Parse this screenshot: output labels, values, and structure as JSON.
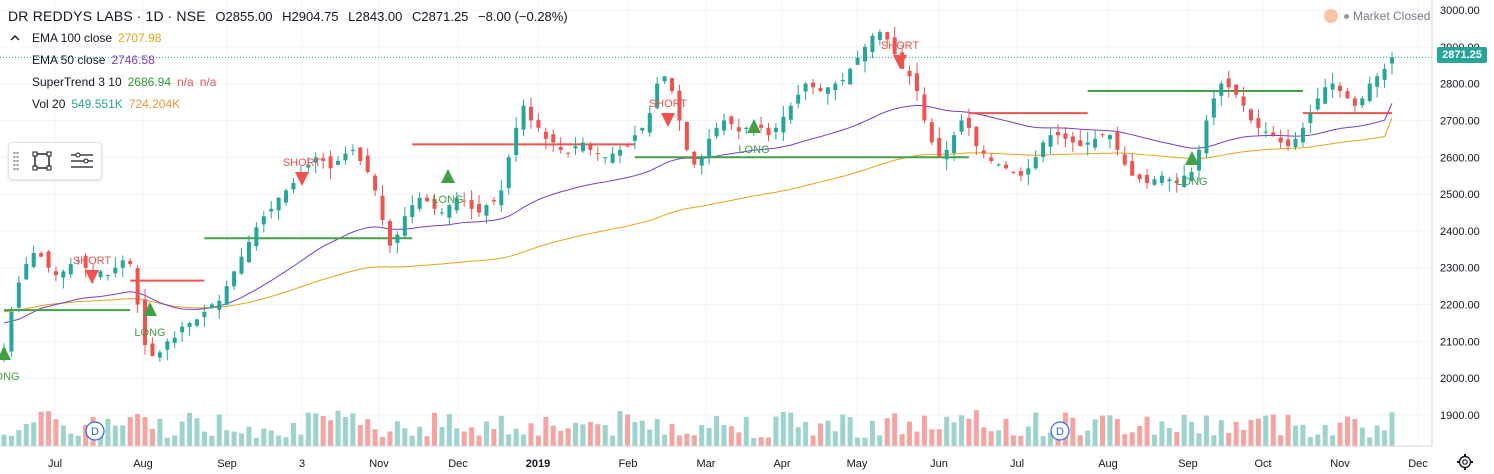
{
  "header": {
    "symbol": "DR REDDYS LABS",
    "interval": "1D",
    "exchange": "NSE",
    "open": "O2855.00",
    "high": "H2904.75",
    "low": "L2843.00",
    "close": "C2871.25",
    "change": "−8.00 (−0.28%)"
  },
  "indicators": [
    {
      "label": "EMA 100 close",
      "value": "2707.98",
      "color": "#e8a21b"
    },
    {
      "label": "EMA 50 close",
      "value": "2746.58",
      "color": "#7b3fc4"
    },
    {
      "label": "SuperTrend 3 10",
      "value": "2686.94",
      "value2": "n/a",
      "value3": "n/a",
      "color": "#2e9a2e",
      "color2": "#ef5350"
    },
    {
      "label": "Vol 20",
      "value": "549.551K",
      "value2": "724.204K",
      "color": "#26a69a",
      "color2": "#f39237"
    }
  ],
  "market_status": "Market Closed",
  "last_price_label": "2871.25",
  "colors": {
    "up": "#26a69a",
    "down": "#ef5350",
    "ema100": "#e8a21b",
    "ema50": "#7b3fc4",
    "st_up": "#43a047",
    "st_down": "#ef5350",
    "vol_up": "#9cd3cd",
    "vol_down": "#f5a3a1"
  },
  "chart_data": {
    "type": "candlestick",
    "y_ticks": [
      "3000.00",
      "2900.00",
      "2800.00",
      "2700.00",
      "2600.00",
      "2500.00",
      "2400.00",
      "2300.00",
      "2200.00",
      "2100.00",
      "2000.00",
      "1900.00"
    ],
    "ylim": [
      1820,
      3030
    ],
    "x_ticks": [
      "Jul",
      "Aug",
      "Sep",
      "3",
      "Nov",
      "Dec",
      "2019",
      "Feb",
      "Mar",
      "Apr",
      "May",
      "Jun",
      "Jul",
      "Aug",
      "Sep",
      "Oct",
      "Nov",
      "Dec"
    ],
    "signals": [
      {
        "type": "LONG",
        "label": "LONG"
      },
      {
        "type": "SHORT",
        "label": "SHORT"
      },
      {
        "type": "LONG",
        "label": "LONG"
      },
      {
        "type": "SHORT",
        "label": "SHORT"
      },
      {
        "type": "LONG",
        "label": "LONG"
      },
      {
        "type": "SHORT",
        "label": "SHORT"
      },
      {
        "type": "LONG",
        "label": "LONG"
      },
      {
        "type": "SHORT",
        "label": "SHORT"
      },
      {
        "type": "LONG",
        "label": "LONG"
      }
    ],
    "event_badges": [
      "D",
      "D"
    ],
    "close_series": [
      2080,
      2180,
      2260,
      2310,
      2340,
      2330,
      2300,
      2280,
      2290,
      2310,
      2320,
      2300,
      2270,
      2290,
      2280,
      2300,
      2320,
      2310,
      2200,
      2090,
      2060,
      2070,
      2100,
      2110,
      2140,
      2150,
      2160,
      2180,
      2200,
      2210,
      2250,
      2290,
      2330,
      2370,
      2410,
      2440,
      2460,
      2490,
      2510,
      2530,
      2560,
      2580,
      2600,
      2590,
      2570,
      2590,
      2610,
      2620,
      2590,
      2560,
      2510,
      2430,
      2360,
      2390,
      2440,
      2470,
      2490,
      2480,
      2460,
      2450,
      2470,
      2490,
      2480,
      2460,
      2450,
      2470,
      2480,
      2510,
      2600,
      2680,
      2740,
      2700,
      2680,
      2650,
      2640,
      2620,
      2610,
      2630,
      2640,
      2620,
      2610,
      2600,
      2610,
      2620,
      2630,
      2660,
      2680,
      2720,
      2800,
      2820,
      2780,
      2700,
      2620,
      2580,
      2600,
      2650,
      2680,
      2700,
      2690,
      2670,
      2680,
      2690,
      2680,
      2660,
      2680,
      2710,
      2740,
      2770,
      2800,
      2790,
      2780,
      2790,
      2800,
      2810,
      2840,
      2870,
      2900,
      2930,
      2940,
      2920,
      2880,
      2840,
      2820,
      2780,
      2700,
      2640,
      2600,
      2620,
      2660,
      2700,
      2680,
      2630,
      2610,
      2590,
      2580,
      2570,
      2560,
      2550,
      2570,
      2600,
      2640,
      2660,
      2660,
      2650,
      2640,
      2630,
      2640,
      2650,
      2660,
      2660,
      2620,
      2580,
      2550,
      2540,
      2530,
      2540,
      2550,
      2540,
      2530,
      2550,
      2560,
      2620,
      2700,
      2760,
      2800,
      2790,
      2770,
      2740,
      2700,
      2680,
      2670,
      2660,
      2640,
      2630,
      2650,
      2680,
      2720,
      2760,
      2790,
      2800,
      2780,
      2760,
      2740,
      2760,
      2800,
      2820,
      2840,
      2871.25
    ],
    "ema50_series": [
      2150,
      2155,
      2160,
      2170,
      2180,
      2190,
      2195,
      2200,
      2205,
      2210,
      2215,
      2218,
      2220,
      2222,
      2225,
      2228,
      2232,
      2235,
      2232,
      2225,
      2215,
      2205,
      2198,
      2192,
      2188,
      2187,
      2187,
      2189,
      2192,
      2196,
      2202,
      2210,
      2219,
      2230,
      2241,
      2253,
      2265,
      2278,
      2291,
      2304,
      2318,
      2332,
      2346,
      2358,
      2368,
      2378,
      2388,
      2397,
      2404,
      2409,
      2411,
      2409,
      2405,
      2404,
      2405,
      2407,
      2410,
      2412,
      2414,
      2415,
      2417,
      2420,
      2423,
      2424,
      2425,
      2427,
      2429,
      2433,
      2440,
      2451,
      2464,
      2475,
      2485,
      2493,
      2500,
      2506,
      2511,
      2517,
      2522,
      2526,
      2530,
      2533,
      2537,
      2541,
      2545,
      2550,
      2556,
      2563,
      2573,
      2583,
      2591,
      2596,
      2598,
      2597,
      2597,
      2599,
      2603,
      2607,
      2610,
      2613,
      2616,
      2619,
      2621,
      2623,
      2625,
      2629,
      2633,
      2639,
      2645,
      2651,
      2656,
      2662,
      2668,
      2674,
      2681,
      2689,
      2698,
      2707,
      2717,
      2725,
      2731,
      2736,
      2739,
      2741,
      2740,
      2736,
      2731,
      2727,
      2725,
      2724,
      2722,
      2718,
      2714,
      2709,
      2704,
      2699,
      2694,
      2689,
      2684,
      2681,
      2680,
      2680,
      2680,
      2679,
      2678,
      2676,
      2675,
      2674,
      2673,
      2672,
      2670,
      2666,
      2661,
      2656,
      2651,
      2646,
      2641,
      2637,
      2632,
      2628,
      2625,
      2625,
      2628,
      2633,
      2640,
      2646,
      2651,
      2655,
      2657,
      2658,
      2659,
      2659,
      2659,
      2658,
      2657,
      2658,
      2660,
      2664,
      2669,
      2674,
      2678,
      2681,
      2683,
      2686,
      2690,
      2695,
      2701,
      2746.58
    ],
    "ema100_series": [
      2180,
      2182,
      2185,
      2189,
      2193,
      2197,
      2200,
      2202,
      2204,
      2206,
      2208,
      2209,
      2210,
      2211,
      2212,
      2213,
      2215,
      2216,
      2215,
      2212,
      2208,
      2203,
      2199,
      2195,
      2193,
      2192,
      2191,
      2191,
      2192,
      2193,
      2195,
      2198,
      2202,
      2206,
      2211,
      2216,
      2222,
      2228,
      2234,
      2241,
      2248,
      2255,
      2262,
      2268,
      2274,
      2280,
      2286,
      2291,
      2296,
      2300,
      2302,
      2303,
      2302,
      2302,
      2303,
      2304,
      2306,
      2307,
      2309,
      2310,
      2312,
      2314,
      2316,
      2318,
      2319,
      2321,
      2323,
      2326,
      2330,
      2336,
      2343,
      2350,
      2357,
      2363,
      2369,
      2374,
      2379,
      2384,
      2389,
      2393,
      2397,
      2401,
      2405,
      2409,
      2413,
      2418,
      2423,
      2428,
      2435,
      2443,
      2450,
      2456,
      2461,
      2464,
      2467,
      2471,
      2475,
      2479,
      2483,
      2487,
      2491,
      2495,
      2498,
      2502,
      2505,
      2509,
      2513,
      2518,
      2523,
      2528,
      2533,
      2538,
      2543,
      2548,
      2554,
      2560,
      2566,
      2573,
      2580,
      2586,
      2592,
      2597,
      2601,
      2605,
      2607,
      2608,
      2608,
      2608,
      2609,
      2611,
      2612,
      2612,
      2612,
      2611,
      2610,
      2609,
      2608,
      2607,
      2606,
      2606,
      2606,
      2607,
      2608,
      2608,
      2609,
      2609,
      2610,
      2610,
      2611,
      2611,
      2612,
      2611,
      2610,
      2608,
      2606,
      2605,
      2603,
      2601,
      2599,
      2598,
      2596,
      2596,
      2598,
      2601,
      2605,
      2609,
      2612,
      2615,
      2617,
      2619,
      2621,
      2622,
      2623,
      2624,
      2625,
      2626,
      2628,
      2631,
      2634,
      2637,
      2640,
      2643,
      2645,
      2647,
      2650,
      2653,
      2656,
      2707.98
    ]
  }
}
